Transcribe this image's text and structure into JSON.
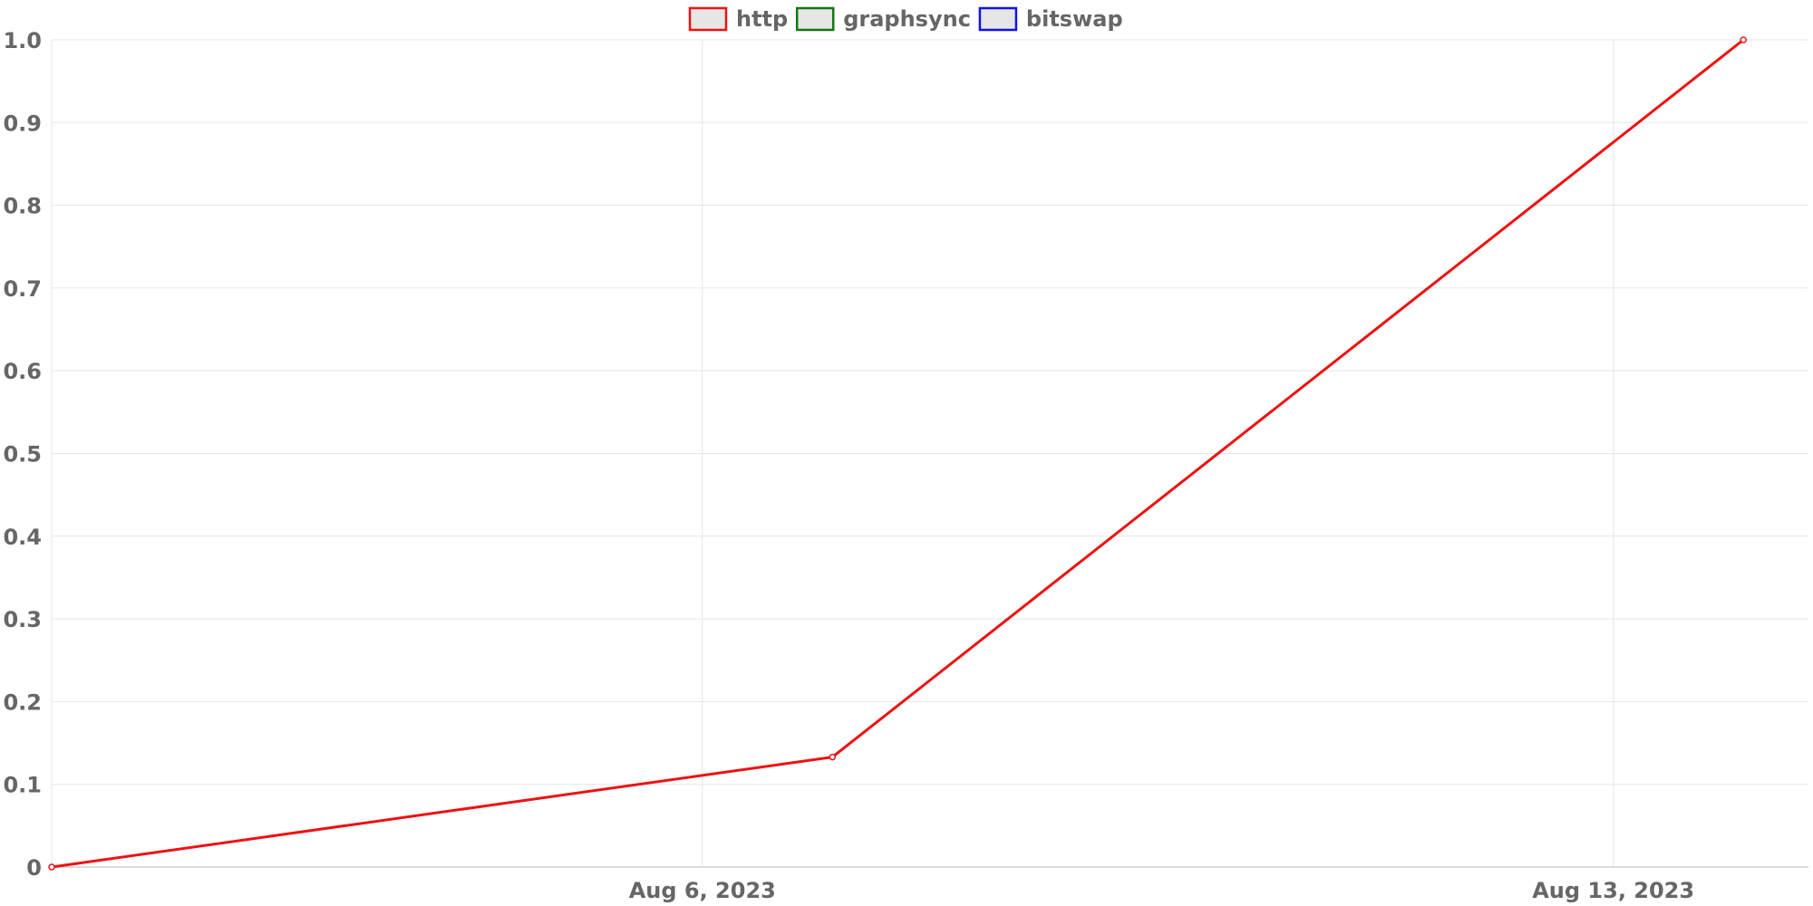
{
  "chart_data": {
    "type": "line",
    "title": "",
    "xlabel": "",
    "ylabel": "",
    "x_axis": {
      "kind": "time",
      "range": [
        "2023-08-01T00:00",
        "2023-08-14T12:00"
      ],
      "ticks": [
        {
          "date": "2023-08-06",
          "label": "Aug 6, 2023"
        },
        {
          "date": "2023-08-13",
          "label": "Aug 13, 2023"
        }
      ]
    },
    "y_axis": {
      "range": [
        0,
        1
      ],
      "ticks": [
        {
          "value": 0,
          "label": "0"
        },
        {
          "value": 0.1,
          "label": "0.1"
        },
        {
          "value": 0.2,
          "label": "0.2"
        },
        {
          "value": 0.3,
          "label": "0.3"
        },
        {
          "value": 0.4,
          "label": "0.4"
        },
        {
          "value": 0.5,
          "label": "0.5"
        },
        {
          "value": 0.6,
          "label": "0.6"
        },
        {
          "value": 0.7,
          "label": "0.7"
        },
        {
          "value": 0.8,
          "label": "0.8"
        },
        {
          "value": 0.9,
          "label": "0.9"
        },
        {
          "value": 1,
          "label": "1.0"
        }
      ]
    },
    "grid": true,
    "legend_position": "top-center",
    "series": [
      {
        "name": "http",
        "color": "#ee1111",
        "points": [
          {
            "x": "2023-08-01T00:00",
            "y": 0
          },
          {
            "x": "2023-08-07T00:00",
            "y": 0.133
          },
          {
            "x": "2023-08-14T00:00",
            "y": 1.0
          }
        ]
      },
      {
        "name": "graphsync",
        "color": "#117711",
        "points": []
      },
      {
        "name": "bitswap",
        "color": "#1111ee",
        "points": []
      }
    ]
  }
}
